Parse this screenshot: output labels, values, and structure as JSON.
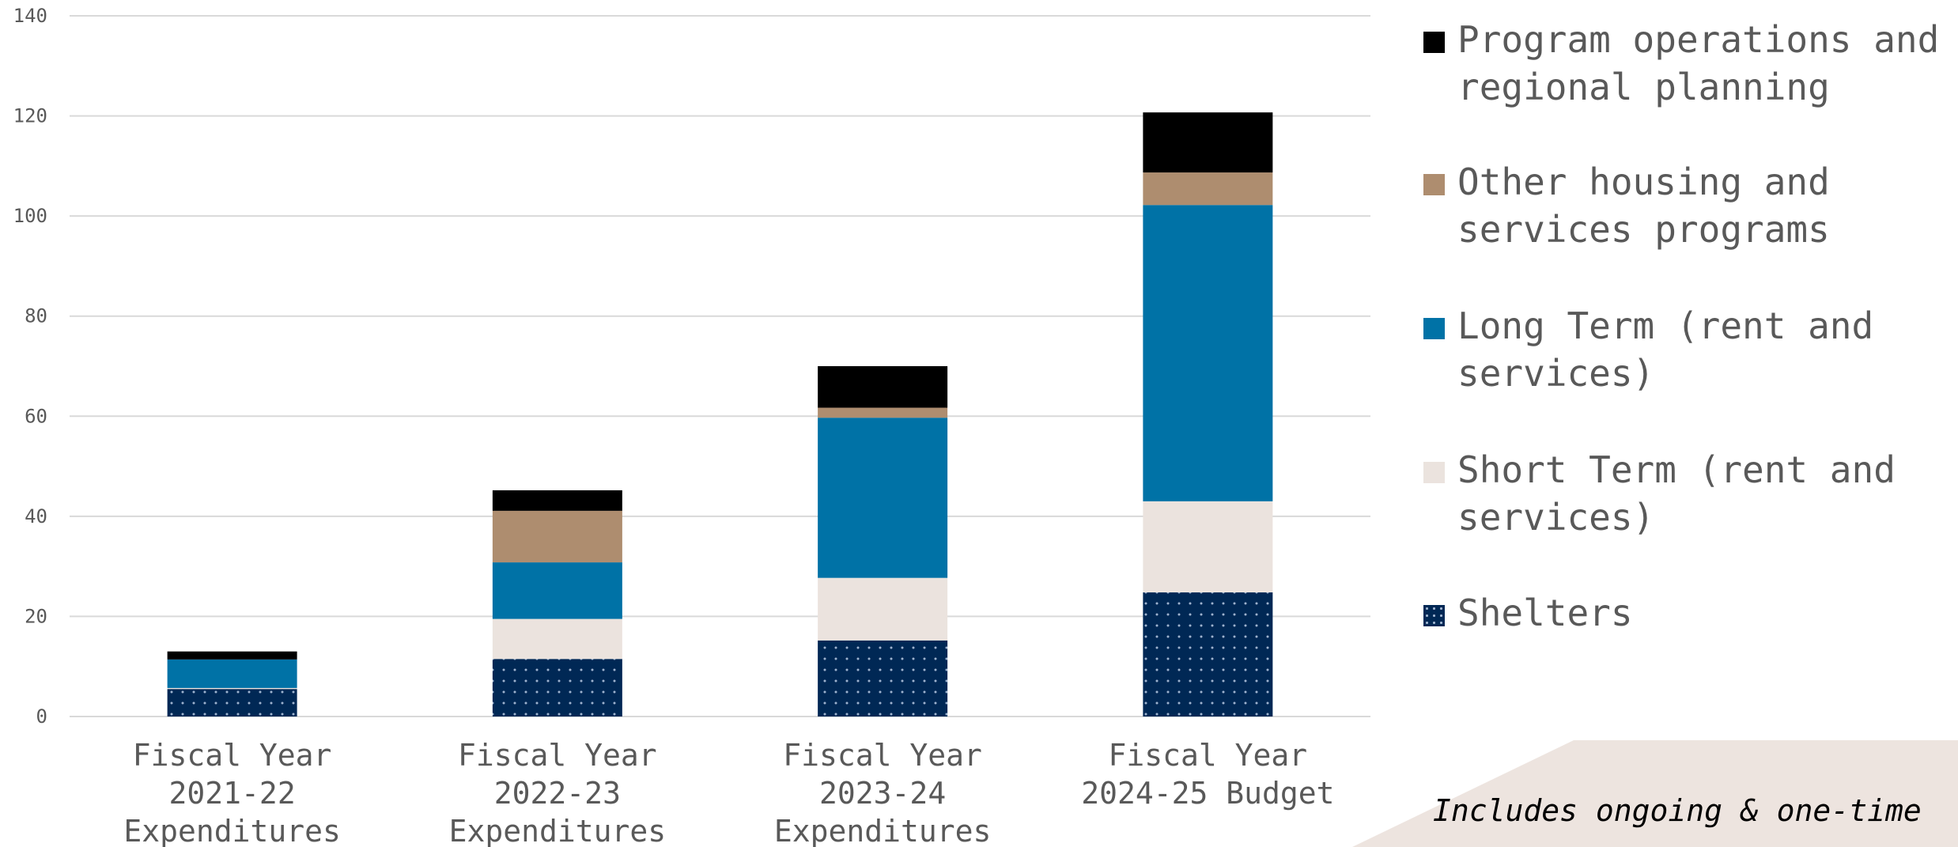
{
  "chart_data": {
    "type": "bar",
    "stacked": true,
    "categories": [
      [
        "Fiscal Year",
        "2021-22",
        "Expenditures"
      ],
      [
        "Fiscal Year",
        "2022-23",
        "Expenditures"
      ],
      [
        "Fiscal Year",
        "2023-24",
        "Expenditures"
      ],
      [
        "Fiscal Year",
        "2024-25 Budget"
      ]
    ],
    "series": [
      {
        "name": "Shelters",
        "color": "#002855",
        "pattern": "dots",
        "values": [
          5.5,
          11.5,
          15.2,
          24.8
        ]
      },
      {
        "name": "Short Term (rent and services)",
        "color": "#ebe3de",
        "values": [
          0.2,
          8.0,
          12.5,
          18.2
        ]
      },
      {
        "name": "Long Term (rent and services)",
        "color": "#0072a6",
        "values": [
          5.7,
          11.3,
          32.0,
          59.2
        ]
      },
      {
        "name": "Other housing and services programs",
        "color": "#ae8d6f",
        "values": [
          0,
          10.3,
          2.0,
          6.5
        ]
      },
      {
        "name": "Program operations and regional planning",
        "color": "#000000",
        "values": [
          1.6,
          4.1,
          8.3,
          12.0
        ]
      }
    ],
    "ylim": [
      0,
      140
    ],
    "yticks": [
      0,
      20,
      40,
      60,
      80,
      100,
      120,
      140
    ],
    "grid": true,
    "legend_position": "right",
    "xlabel": "",
    "ylabel": ""
  },
  "note": "Includes ongoing & one-time"
}
